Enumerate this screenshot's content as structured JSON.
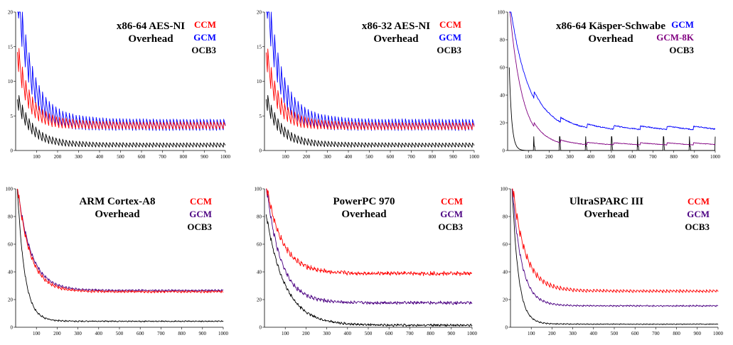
{
  "chart_data": [
    {
      "type": "line",
      "title": [
        "x86-64 AES-NI",
        "Overhead"
      ],
      "xlim": [
        0,
        1000
      ],
      "ylim": [
        0,
        20
      ],
      "xticks": [
        100,
        200,
        300,
        400,
        500,
        600,
        700,
        800,
        900,
        1000
      ],
      "yticks": [
        0,
        5,
        10,
        15,
        20
      ],
      "grid": false,
      "legend": "top-right",
      "series": [
        {
          "name": "CCM",
          "color": "#ff0000",
          "peak": 12,
          "floor": 3.0,
          "decay": 45,
          "sawtooth": 1.1,
          "period": 16,
          "noise": 0.05
        },
        {
          "name": "GCM",
          "color": "#0000ff",
          "peak": 20,
          "floor": 2.7,
          "decay": 55,
          "sawtooth": 1.8,
          "period": 16,
          "noise": 0.05
        },
        {
          "name": "OCB3",
          "color": "#000000",
          "peak": 6,
          "floor": 0.4,
          "decay": 60,
          "sawtooth": 0.7,
          "period": 16,
          "noise": 0.03
        }
      ]
    },
    {
      "type": "line",
      "title": [
        "x86-32 AES-NI",
        "Overhead"
      ],
      "xlim": [
        0,
        1000
      ],
      "ylim": [
        0,
        20
      ],
      "xticks": [
        100,
        200,
        300,
        400,
        500,
        600,
        700,
        800,
        900,
        1000
      ],
      "yticks": [
        0,
        5,
        10,
        15,
        20
      ],
      "grid": false,
      "legend": "top-right",
      "series": [
        {
          "name": "CCM",
          "color": "#ff0000",
          "peak": 12,
          "floor": 2.9,
          "decay": 45,
          "sawtooth": 1.1,
          "period": 16,
          "noise": 0.05
        },
        {
          "name": "GCM",
          "color": "#0000ff",
          "peak": 20,
          "floor": 2.7,
          "decay": 55,
          "sawtooth": 1.8,
          "period": 16,
          "noise": 0.05
        },
        {
          "name": "OCB3",
          "color": "#000000",
          "peak": 6,
          "floor": 0.4,
          "decay": 60,
          "sawtooth": 0.7,
          "period": 16,
          "noise": 0.03
        }
      ]
    },
    {
      "type": "line",
      "title": [
        "x86-64 Käsper-Schwabe",
        "Overhead"
      ],
      "xlim": [
        0,
        1000
      ],
      "ylim": [
        0,
        100
      ],
      "xticks": [
        100,
        200,
        300,
        400,
        500,
        600,
        700,
        800,
        900,
        1000
      ],
      "yticks": [
        0,
        20,
        40,
        60,
        80,
        100
      ],
      "grid": false,
      "legend": "top-right",
      "series": [
        {
          "name": "GCM",
          "color": "#0000ff",
          "peak": 100,
          "floor": 15,
          "decay": 90,
          "sawtooth": 2.5,
          "period": 128,
          "noise": 0.4
        },
        {
          "name": "GCM-8K",
          "color": "#800080",
          "peak": 100,
          "floor": 4,
          "decay": 60,
          "sawtooth": 1.5,
          "period": 128,
          "noise": 0.2
        },
        {
          "name": "OCB3",
          "color": "#000000",
          "peak": 60,
          "floor": 0,
          "decay": 12,
          "sawtooth": 0,
          "period": 128,
          "noise": 0,
          "spikes": 10
        }
      ]
    },
    {
      "type": "line",
      "title": [
        "ARM Cortex-A8",
        "Overhead"
      ],
      "xlim": [
        0,
        1000
      ],
      "ylim": [
        0,
        100
      ],
      "xticks": [
        100,
        200,
        300,
        400,
        500,
        600,
        700,
        800,
        900,
        1000
      ],
      "yticks": [
        0,
        20,
        40,
        60,
        80,
        100
      ],
      "grid": false,
      "legend": "top-right",
      "series": [
        {
          "name": "CCM",
          "color": "#ff0000",
          "peak": 100,
          "floor": 25,
          "decay": 60,
          "sawtooth": 1.2,
          "period": 16,
          "noise": 0.4
        },
        {
          "name": "GCM",
          "color": "#4b0082",
          "peak": 100,
          "floor": 26,
          "decay": 65,
          "sawtooth": 1.0,
          "period": 16,
          "noise": 0.4
        },
        {
          "name": "OCB3",
          "color": "#000000",
          "peak": 100,
          "floor": 4,
          "decay": 35,
          "sawtooth": 0.5,
          "period": 16,
          "noise": 0.3
        }
      ]
    },
    {
      "type": "line",
      "title": [
        "PowerPC 970",
        "Overhead"
      ],
      "xlim": [
        0,
        1000
      ],
      "ylim": [
        0,
        100
      ],
      "xticks": [
        100,
        200,
        300,
        400,
        500,
        600,
        700,
        800,
        900,
        1000
      ],
      "yticks": [
        0,
        20,
        40,
        60,
        80,
        100
      ],
      "grid": false,
      "legend": "top-right",
      "series": [
        {
          "name": "CCM",
          "color": "#ff0000",
          "peak": 100,
          "floor": 38,
          "decay": 75,
          "sawtooth": 1.5,
          "period": 16,
          "noise": 1.0
        },
        {
          "name": "GCM",
          "color": "#4b0082",
          "peak": 100,
          "floor": 17,
          "decay": 70,
          "sawtooth": 1.2,
          "period": 16,
          "noise": 0.8
        },
        {
          "name": "OCB3",
          "color": "#000000",
          "peak": 80,
          "floor": 1,
          "decay": 90,
          "sawtooth": 0.8,
          "period": 16,
          "noise": 0.6
        }
      ]
    },
    {
      "type": "line",
      "title": [
        "UltraSPARC III",
        "Overhead"
      ],
      "xlim": [
        0,
        1000
      ],
      "ylim": [
        0,
        100
      ],
      "xticks": [
        100,
        200,
        300,
        400,
        500,
        600,
        700,
        800,
        900,
        1000
      ],
      "yticks": [
        0,
        20,
        40,
        60,
        80,
        100
      ],
      "grid": false,
      "legend": "top-right",
      "series": [
        {
          "name": "CCM",
          "color": "#ff0000",
          "peak": 100,
          "floor": 25,
          "decay": 60,
          "sawtooth": 2.0,
          "period": 16,
          "noise": 0.3
        },
        {
          "name": "GCM",
          "color": "#4b0082",
          "peak": 100,
          "floor": 15,
          "decay": 45,
          "sawtooth": 0.8,
          "period": 16,
          "noise": 0.3
        },
        {
          "name": "OCB3",
          "color": "#000000",
          "peak": 100,
          "floor": 2,
          "decay": 30,
          "sawtooth": 0.4,
          "period": 16,
          "noise": 0.2
        }
      ]
    }
  ]
}
